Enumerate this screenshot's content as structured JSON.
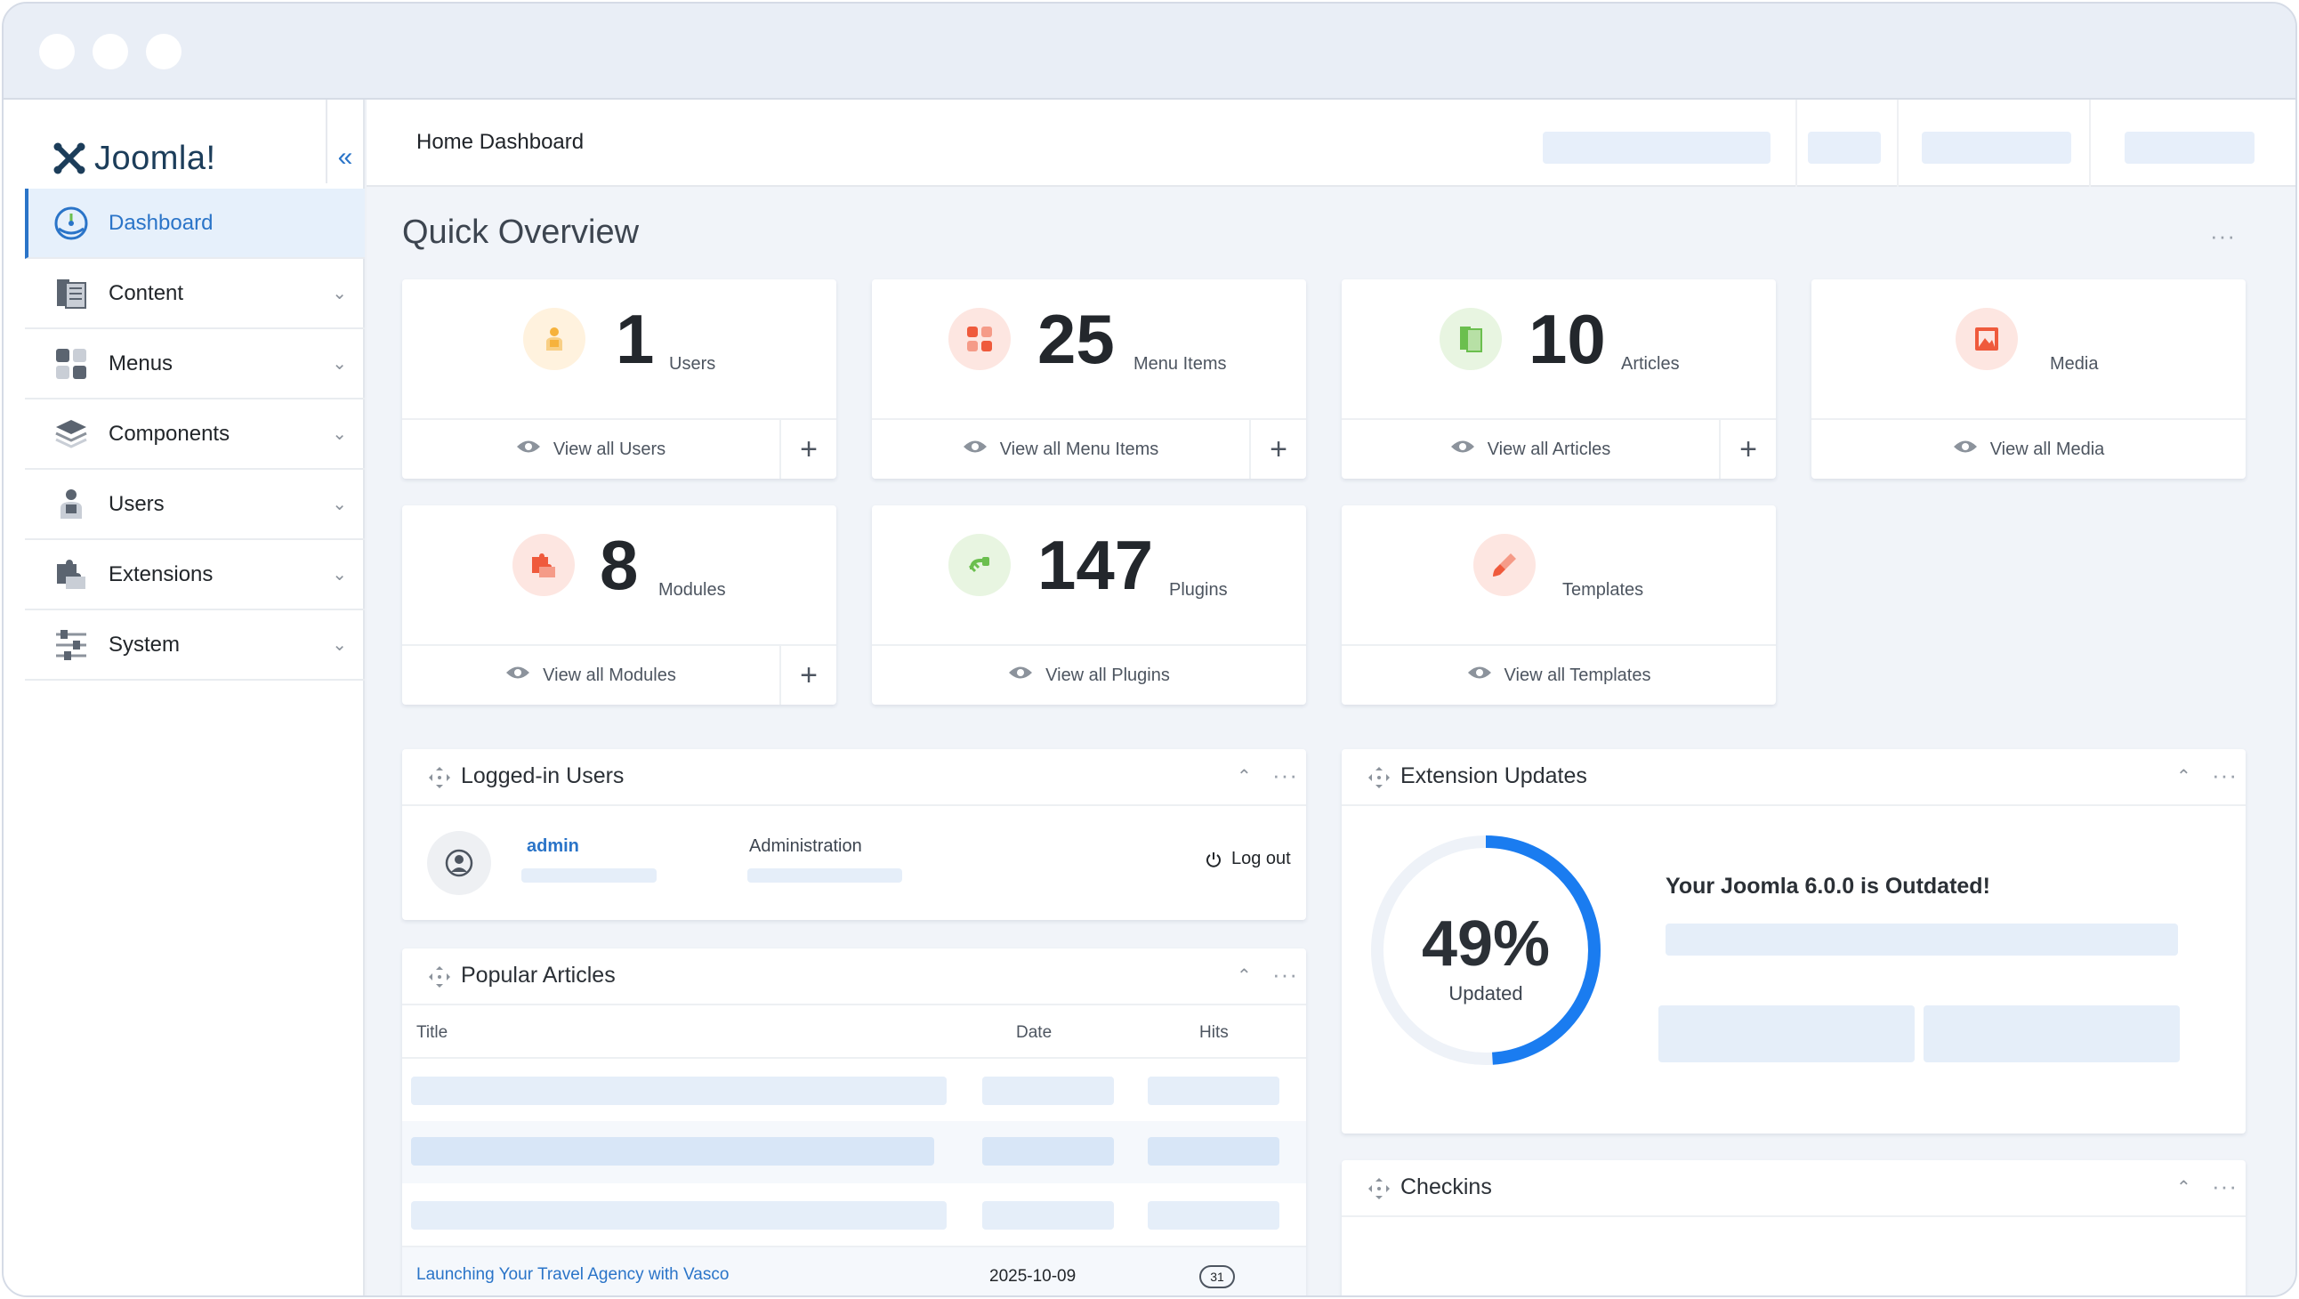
{
  "window": {
    "controls": [
      "close",
      "minimize",
      "maximize"
    ]
  },
  "sidebar": {
    "logo_text": "Joomla!",
    "items": [
      {
        "label": "Dashboard",
        "icon": "dashboard-icon",
        "active": true
      },
      {
        "label": "Content",
        "icon": "content-icon"
      },
      {
        "label": "Menus",
        "icon": "menus-icon"
      },
      {
        "label": "Components",
        "icon": "components-icon"
      },
      {
        "label": "Users",
        "icon": "users-icon"
      },
      {
        "label": "Extensions",
        "icon": "extensions-icon"
      },
      {
        "label": "System",
        "icon": "system-icon"
      }
    ]
  },
  "header": {
    "title": "Home Dashboard"
  },
  "quick_overview": {
    "title": "Quick Overview",
    "cards": [
      {
        "count": "1",
        "label": "Users",
        "link": "View all Users",
        "color": "#f6b23c"
      },
      {
        "count": "25",
        "label": "Menu Items",
        "link": "View all Menu Items",
        "color": "#ef5a3c"
      },
      {
        "count": "10",
        "label": "Articles",
        "link": "View all Articles",
        "color": "#6bbf4e"
      },
      {
        "count": "",
        "label": "Media",
        "link": "View all Media",
        "color": "#ef5a3c"
      },
      {
        "count": "8",
        "label": "Modules",
        "link": "View all Modules",
        "color": "#ef5a3c"
      },
      {
        "count": "147",
        "label": "Plugins",
        "link": "View all Plugins",
        "color": "#6bbf4e"
      },
      {
        "count": "",
        "label": "Templates",
        "link": "View all Templates",
        "color": "#ef5a3c"
      }
    ]
  },
  "logged_in_users": {
    "title": "Logged-in Users",
    "user_name": "admin",
    "location": "Administration",
    "logout_label": "Log out"
  },
  "popular_articles": {
    "title": "Popular Articles",
    "columns": [
      "Title",
      "Date",
      "Hits"
    ],
    "rows": [
      {
        "title": "Launching Your Travel Agency with Vasco",
        "date": "2025-10-09",
        "hits": "31"
      }
    ]
  },
  "extension_updates": {
    "title": "Extension Updates",
    "percent": "49%",
    "percent_value": 49,
    "sub_label": "Updated",
    "message": "Your Joomla 6.0.0 is Outdated!",
    "accent": "#1a7cf0"
  },
  "checkins": {
    "title": "Checkins"
  }
}
